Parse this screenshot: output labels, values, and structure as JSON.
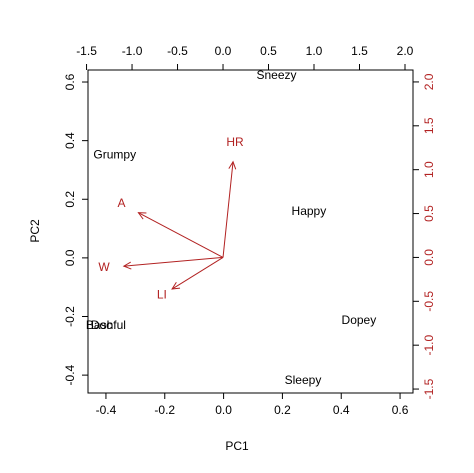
{
  "chart_data": {
    "type": "biplot",
    "x_label": "PC1",
    "y_label": "PC2",
    "xlim": [
      -0.461,
      0.644
    ],
    "ylim": [
      -0.461,
      0.641
    ],
    "xticks": [
      -0.4,
      -0.2,
      0.0,
      0.2,
      0.4,
      0.6
    ],
    "yticks": [
      -0.4,
      -0.2,
      0.0,
      0.2,
      0.4,
      0.6
    ],
    "x2lim": [
      -1.484,
      2.088
    ],
    "y2lim": [
      -1.545,
      2.136
    ],
    "x2ticks": [
      -1.5,
      -1.0,
      -0.5,
      0.0,
      0.5,
      1.0,
      1.5,
      2.0
    ],
    "y2ticks": [
      -1.5,
      -1.0,
      -0.5,
      0.0,
      0.5,
      1.0,
      1.5,
      2.0
    ],
    "points": {
      "color": "#000000",
      "names": [
        "Sneezy",
        "Grumpy",
        "Happy",
        "Dopey",
        "Sleepy",
        "Doc",
        "Bashful"
      ],
      "x": [
        0.18,
        -0.37,
        0.29,
        0.46,
        0.27,
        -0.415,
        -0.4
      ],
      "y": [
        0.621,
        0.35,
        0.157,
        -0.215,
        -0.42,
        -0.232,
        -0.232
      ]
    },
    "arrows": {
      "color": "#b22222",
      "names": [
        "HR",
        "A",
        "W",
        "LI"
      ],
      "x": [
        0.11,
        -0.93,
        -1.09,
        -0.56
      ],
      "y": [
        1.09,
        0.51,
        -0.1,
        -0.36
      ]
    }
  }
}
